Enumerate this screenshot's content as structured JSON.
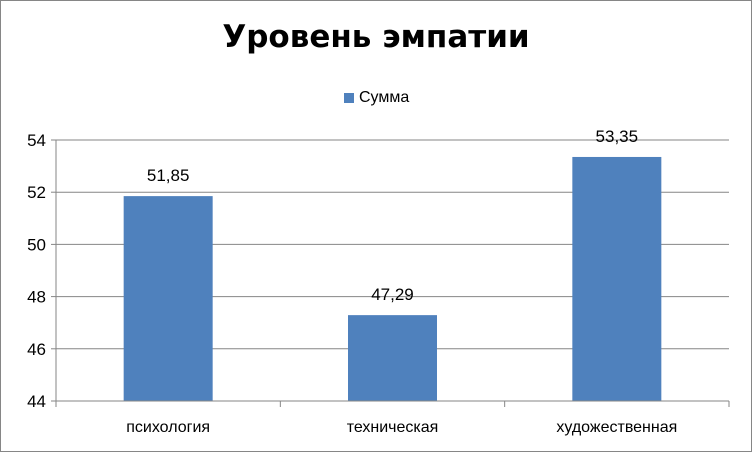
{
  "chart_data": {
    "type": "bar",
    "title": "Уровень эмпатии",
    "categories": [
      "психология",
      "техническая",
      "художественная"
    ],
    "series": [
      {
        "name": "Сумма",
        "values": [
          51.85,
          47.29,
          53.35
        ],
        "labels": [
          "51,85",
          "47,29",
          "53,35"
        ],
        "color": "#4F81BD"
      }
    ],
    "ylim": [
      44,
      54
    ],
    "yticks": [
      44,
      46,
      48,
      50,
      52,
      54
    ],
    "grid": true,
    "legend": "top-center"
  }
}
